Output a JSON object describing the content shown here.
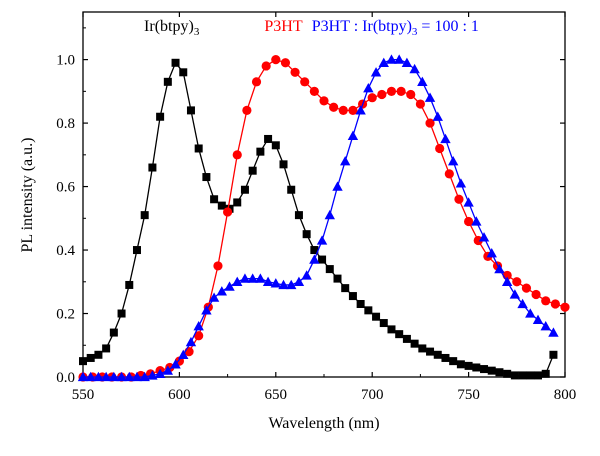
{
  "chart_data": {
    "type": "scatter",
    "xlabel": "Wavelength (nm)",
    "ylabel": "PL intensity (a.u.)",
    "xlim": [
      550,
      800
    ],
    "ylim": [
      0.0,
      1.15
    ],
    "x_ticks": [
      550,
      600,
      650,
      700,
      750,
      800
    ],
    "x_tick_labels": [
      "550",
      "600",
      "650",
      "700",
      "750",
      "800"
    ],
    "y_ticks": [
      0.0,
      0.2,
      0.4,
      0.6,
      0.8,
      1.0
    ],
    "y_tick_labels": [
      "0.0",
      "0.2",
      "0.4",
      "0.6",
      "0.8",
      "1.0"
    ],
    "grid": false,
    "series": [
      {
        "name": "Ir(btpy)3",
        "label_main": "Ir(btpy)",
        "label_sub": "3",
        "color": "#000000",
        "marker": "square",
        "x": [
          550,
          554,
          558,
          562,
          566,
          570,
          574,
          578,
          582,
          586,
          590,
          594,
          598,
          602,
          606,
          610,
          614,
          618,
          622,
          626,
          630,
          634,
          638,
          642,
          646,
          650,
          654,
          658,
          662,
          666,
          670,
          674,
          678,
          682,
          686,
          690,
          694,
          698,
          702,
          706,
          710,
          714,
          718,
          722,
          726,
          730,
          734,
          738,
          742,
          746,
          750,
          754,
          758,
          762,
          766,
          770,
          774,
          778,
          782,
          786,
          790,
          794
        ],
        "y": [
          0.05,
          0.06,
          0.07,
          0.09,
          0.14,
          0.2,
          0.29,
          0.4,
          0.51,
          0.66,
          0.82,
          0.93,
          0.99,
          0.96,
          0.84,
          0.72,
          0.63,
          0.56,
          0.54,
          0.53,
          0.55,
          0.59,
          0.65,
          0.71,
          0.75,
          0.73,
          0.67,
          0.59,
          0.51,
          0.45,
          0.4,
          0.37,
          0.34,
          0.31,
          0.28,
          0.255,
          0.23,
          0.21,
          0.19,
          0.17,
          0.15,
          0.135,
          0.12,
          0.105,
          0.09,
          0.08,
          0.07,
          0.06,
          0.05,
          0.04,
          0.035,
          0.03,
          0.025,
          0.02,
          0.015,
          0.01,
          0.005,
          0.005,
          0.005,
          0.005,
          0.01,
          0.07
        ],
        "label_x": 596,
        "label_y": 1.09
      },
      {
        "name": "P3HT",
        "label_main": "P3HT",
        "label_sub": "",
        "color": "#ff0000",
        "marker": "circle",
        "x": [
          550,
          555,
          560,
          565,
          570,
          575,
          580,
          585,
          590,
          595,
          600,
          605,
          610,
          615,
          620,
          625,
          630,
          635,
          640,
          645,
          650,
          655,
          660,
          665,
          670,
          675,
          680,
          685,
          690,
          695,
          700,
          705,
          710,
          715,
          720,
          725,
          730,
          735,
          740,
          745,
          750,
          755,
          760,
          765,
          770,
          775,
          780,
          785,
          790,
          795,
          800
        ],
        "y": [
          0.0,
          0.0,
          0.0,
          0.0,
          0.0,
          0.0,
          0.005,
          0.01,
          0.02,
          0.03,
          0.05,
          0.08,
          0.13,
          0.22,
          0.35,
          0.52,
          0.7,
          0.84,
          0.93,
          0.98,
          1.0,
          0.99,
          0.96,
          0.93,
          0.9,
          0.87,
          0.85,
          0.84,
          0.84,
          0.86,
          0.88,
          0.89,
          0.9,
          0.9,
          0.89,
          0.86,
          0.8,
          0.72,
          0.64,
          0.56,
          0.49,
          0.43,
          0.38,
          0.35,
          0.32,
          0.3,
          0.28,
          0.26,
          0.24,
          0.23,
          0.22
        ],
        "label_x": 654,
        "label_y": 1.09
      },
      {
        "name": "P3HT : Ir(btpy)3 = 100 : 1",
        "label_main": "P3HT : Ir(btpy)",
        "label_sub": "3",
        "label_tail": " = 100 : 1",
        "color": "#0000ff",
        "marker": "triangle",
        "x": [
          550,
          554,
          558,
          562,
          566,
          570,
          574,
          578,
          582,
          586,
          590,
          594,
          598,
          602,
          606,
          610,
          614,
          618,
          622,
          626,
          630,
          634,
          638,
          642,
          646,
          650,
          654,
          658,
          662,
          666,
          670,
          674,
          678,
          682,
          686,
          690,
          694,
          698,
          702,
          706,
          710,
          714,
          718,
          722,
          726,
          730,
          734,
          738,
          742,
          746,
          750,
          754,
          758,
          762,
          766,
          770,
          774,
          778,
          782,
          786,
          790,
          794
        ],
        "y": [
          0.0,
          0.0,
          0.0,
          0.0,
          0.0,
          0.0,
          0.0,
          0.0,
          0.0,
          0.005,
          0.01,
          0.02,
          0.04,
          0.07,
          0.11,
          0.16,
          0.21,
          0.25,
          0.27,
          0.285,
          0.3,
          0.31,
          0.31,
          0.31,
          0.3,
          0.295,
          0.29,
          0.29,
          0.3,
          0.32,
          0.37,
          0.43,
          0.51,
          0.6,
          0.68,
          0.76,
          0.84,
          0.91,
          0.96,
          0.99,
          1.0,
          1.0,
          0.99,
          0.97,
          0.93,
          0.88,
          0.82,
          0.75,
          0.68,
          0.61,
          0.55,
          0.49,
          0.44,
          0.39,
          0.34,
          0.3,
          0.26,
          0.23,
          0.2,
          0.18,
          0.16,
          0.14
        ],
        "label_x": 712,
        "label_y": 1.09
      }
    ]
  }
}
